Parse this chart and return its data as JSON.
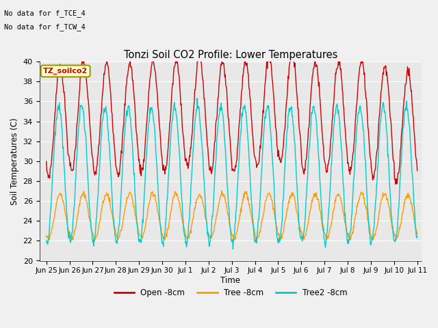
{
  "title": "Tonzi Soil CO2 Profile: Lower Temperatures",
  "ylabel": "Soil Temperatures (C)",
  "xlabel": "Time",
  "ylim": [
    20,
    40
  ],
  "annotation1": "No data for f_TCE_4",
  "annotation2": "No data for f_TCW_4",
  "box_label": "TZ_soilco2",
  "legend": [
    "Open -8cm",
    "Tree -8cm",
    "Tree2 -8cm"
  ],
  "line_colors": [
    "#cc0000",
    "#ff9900",
    "#00cccc"
  ],
  "bg_color": "#e8e8e8",
  "fig_bg_color": "#f0f0f0",
  "grid_color": "#ffffff",
  "tick_labels": [
    "Jun 25",
    "Jun 26",
    "Jun 27",
    "Jun 28",
    "Jun 29",
    "Jun 30",
    "Jul 1",
    "Jul 2",
    "Jul 3",
    "Jul 4",
    "Jul 5",
    "Jul 6",
    "Jul 7",
    "Jul 8",
    "Jul 9",
    "Jul 10",
    "Jul 11"
  ],
  "tick_positions": [
    0,
    1,
    2,
    3,
    4,
    5,
    6,
    7,
    8,
    9,
    10,
    11,
    12,
    13,
    14,
    15,
    16
  ],
  "red_mean": 34.0,
  "red_amp": 5.5,
  "red_phase": 0.35,
  "orange_mean": 24.5,
  "orange_amp": 3.0,
  "orange_phase": 0.38,
  "cyan_mean": 29.0,
  "cyan_amp": 6.5,
  "cyan_phase": 0.28
}
